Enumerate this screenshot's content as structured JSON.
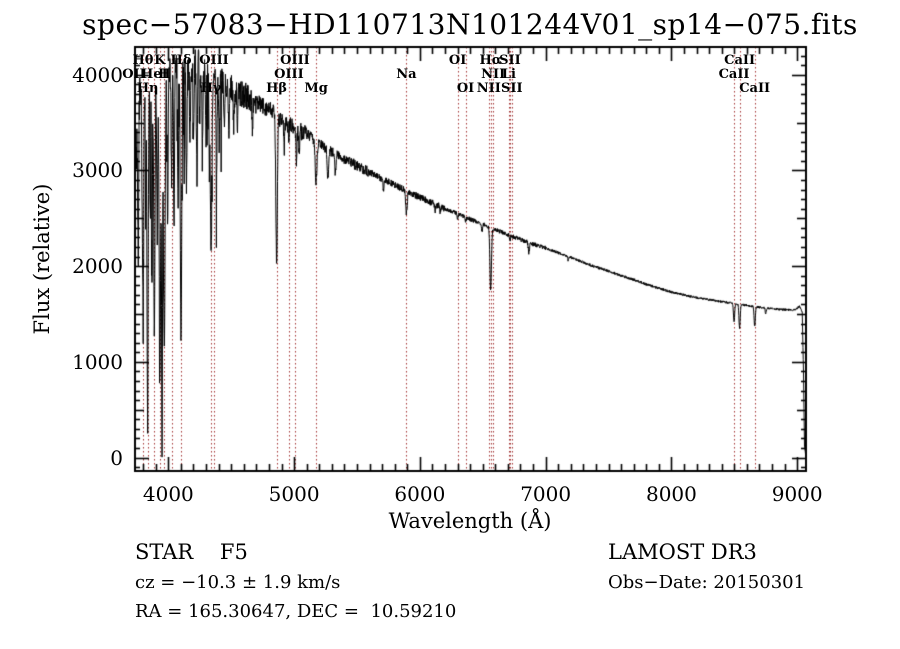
{
  "title": "spec−57083−HD110713N101244V01_sp14−075.fits",
  "colors": {
    "background": "#ffffff",
    "spectrum": "#000000",
    "axis": "#000000",
    "line_marker_red": "#a03030"
  },
  "annotations": {
    "class_line": "STAR    F5",
    "cz_line": "cz = −10.3 ± 1.9 km/s",
    "radec_line": "RA = 165.30647, DEC =  10.59210",
    "survey": "LAMOST DR3",
    "obs_date": "Obs−Date: 20150301"
  },
  "chart_data": {
    "type": "line",
    "title": "spec−57083−HD110713N101244V01_sp14−075.fits",
    "xlabel": "Wavelength (Å)",
    "ylabel": "Flux (relative)",
    "xlim": [
      3735,
      9070
    ],
    "ylim": [
      -140,
      4290
    ],
    "xticks": [
      4000,
      5000,
      6000,
      7000,
      8000,
      9000
    ],
    "yticks": [
      0,
      1000,
      2000,
      3000,
      4000
    ],
    "x_minor_step": 100,
    "y_minor_step": 100,
    "grid": false,
    "legend": null,
    "sample_step": 2,
    "noise_seed": 42,
    "continuum": [
      [
        3742,
        3000
      ],
      [
        3760,
        3750
      ],
      [
        3800,
        4000
      ],
      [
        3900,
        4050
      ],
      [
        4000,
        4100
      ],
      [
        4100,
        4130
      ],
      [
        4200,
        4120
      ],
      [
        4300,
        4030
      ],
      [
        4400,
        3950
      ],
      [
        4500,
        3870
      ],
      [
        4600,
        3790
      ],
      [
        4700,
        3710
      ],
      [
        4800,
        3640
      ],
      [
        4900,
        3520
      ],
      [
        5000,
        3440
      ],
      [
        5100,
        3380
      ],
      [
        5200,
        3280
      ],
      [
        5300,
        3190
      ],
      [
        5400,
        3120
      ],
      [
        5500,
        3050
      ],
      [
        5600,
        2980
      ],
      [
        5700,
        2910
      ],
      [
        5800,
        2850
      ],
      [
        5900,
        2780
      ],
      [
        6000,
        2720
      ],
      [
        6100,
        2660
      ],
      [
        6200,
        2600
      ],
      [
        6300,
        2550
      ],
      [
        6400,
        2490
      ],
      [
        6500,
        2440
      ],
      [
        6600,
        2380
      ],
      [
        6700,
        2330
      ],
      [
        6800,
        2280
      ],
      [
        6900,
        2230
      ],
      [
        7000,
        2190
      ],
      [
        7100,
        2140
      ],
      [
        7200,
        2090
      ],
      [
        7300,
        2040
      ],
      [
        7400,
        1990
      ],
      [
        7500,
        1950
      ],
      [
        7600,
        1900
      ],
      [
        7700,
        1860
      ],
      [
        7800,
        1810
      ],
      [
        7900,
        1770
      ],
      [
        8000,
        1730
      ],
      [
        8100,
        1700
      ],
      [
        8200,
        1670
      ],
      [
        8300,
        1650
      ],
      [
        8400,
        1630
      ],
      [
        8500,
        1610
      ],
      [
        8600,
        1590
      ],
      [
        8700,
        1570
      ],
      [
        8800,
        1555
      ],
      [
        8900,
        1545
      ],
      [
        8980,
        1545
      ],
      [
        9020,
        1580
      ],
      [
        9040,
        1520
      ],
      [
        9050,
        900
      ],
      [
        9058,
        120
      ],
      [
        9068,
        20
      ]
    ],
    "absorption_lines": [
      [
        3727,
        300,
        5
      ],
      [
        3760,
        1500,
        4
      ],
      [
        3798,
        2400,
        6
      ],
      [
        3820,
        1500,
        3
      ],
      [
        3835,
        3650,
        5
      ],
      [
        3856,
        1600,
        3
      ],
      [
        3870,
        2100,
        4
      ],
      [
        3889,
        2750,
        5
      ],
      [
        3912,
        1800,
        4
      ],
      [
        3933,
        3300,
        6
      ],
      [
        3950,
        3900,
        4
      ],
      [
        3968,
        3050,
        6
      ],
      [
        3995,
        1500,
        4
      ],
      [
        4026,
        1300,
        4
      ],
      [
        4045,
        1700,
        4
      ],
      [
        4077,
        1400,
        4
      ],
      [
        4101,
        2850,
        6
      ],
      [
        4126,
        1100,
        3
      ],
      [
        4144,
        1250,
        4
      ],
      [
        4172,
        900,
        4
      ],
      [
        4200,
        800,
        3
      ],
      [
        4227,
        1100,
        4
      ],
      [
        4250,
        700,
        3
      ],
      [
        4271,
        900,
        4
      ],
      [
        4300,
        800,
        3
      ],
      [
        4326,
        900,
        3
      ],
      [
        4340,
        1950,
        6
      ],
      [
        4383,
        1000,
        4
      ],
      [
        4405,
        700,
        4
      ],
      [
        4445,
        500,
        4
      ],
      [
        4481,
        550,
        4
      ],
      [
        4520,
        400,
        4
      ],
      [
        4550,
        350,
        4
      ],
      [
        4668,
        300,
        4
      ],
      [
        4861,
        1500,
        6
      ],
      [
        4921,
        280,
        4
      ],
      [
        4957,
        200,
        3
      ],
      [
        5018,
        320,
        4
      ],
      [
        5041,
        250,
        3
      ],
      [
        5175,
        430,
        7
      ],
      [
        5269,
        330,
        5
      ],
      [
        5328,
        200,
        4
      ],
      [
        5711,
        120,
        4
      ],
      [
        5893,
        230,
        6
      ],
      [
        6122,
        60,
        4
      ],
      [
        6162,
        50,
        4
      ],
      [
        6300,
        60,
        4
      ],
      [
        6363,
        45,
        4
      ],
      [
        6495,
        80,
        4
      ],
      [
        6563,
        650,
        6
      ],
      [
        6717,
        40,
        4
      ],
      [
        6867,
        110,
        5
      ],
      [
        7180,
        40,
        4
      ],
      [
        8498,
        190,
        5
      ],
      [
        8542,
        250,
        5
      ],
      [
        8662,
        210,
        5
      ],
      [
        8750,
        60,
        4
      ]
    ],
    "noise_segments": [
      [
        3742,
        4000,
        230
      ],
      [
        4000,
        4300,
        200
      ],
      [
        4300,
        4700,
        140
      ],
      [
        4700,
        5100,
        90
      ],
      [
        5100,
        5600,
        55
      ],
      [
        5600,
        6200,
        35
      ],
      [
        6200,
        7000,
        22
      ],
      [
        7000,
        8000,
        14
      ],
      [
        8000,
        9040,
        12
      ],
      [
        9040,
        9070,
        5
      ]
    ],
    "marked_lines": [
      {
        "label": "OII",
        "wl": 3727,
        "row": 2
      },
      {
        "label": "Hθ",
        "wl": 3798,
        "row": 1
      },
      {
        "label": "Hη",
        "wl": 3835,
        "row": 3
      },
      {
        "label": "HeI",
        "wl": 3889,
        "row": 2
      },
      {
        "label": "K",
        "wl": 3933,
        "row": 1
      },
      {
        "label": "H",
        "wl": 3968,
        "row": 2
      },
      {
        "label": "",
        "wl": 4026,
        "row": 2
      },
      {
        "label": "Hδ",
        "wl": 4101,
        "row": 1
      },
      {
        "label": "Hγ",
        "wl": 4340,
        "row": 3
      },
      {
        "label": "OIII",
        "wl": 4363,
        "row": 1
      },
      {
        "label": "Hβ",
        "wl": 4861,
        "row": 3
      },
      {
        "label": "OIII",
        "wl": 4959,
        "row": 2
      },
      {
        "label": "OIII",
        "wl": 5007,
        "row": 1
      },
      {
        "label": "Mg",
        "wl": 5175,
        "row": 3
      },
      {
        "label": "Na",
        "wl": 5893,
        "row": 2
      },
      {
        "label": "OI",
        "wl": 6300,
        "row": 1
      },
      {
        "label": "OI",
        "wl": 6363,
        "row": 3
      },
      {
        "label": "NII",
        "wl": 6548,
        "row": 3
      },
      {
        "label": "Hα",
        "wl": 6563,
        "row": 1
      },
      {
        "label": "NII",
        "wl": 6583,
        "row": 2
      },
      {
        "label": "Li",
        "wl": 6708,
        "row": 2
      },
      {
        "label": "SII",
        "wl": 6716,
        "row": 1
      },
      {
        "label": "SII",
        "wl": 6731,
        "row": 3
      },
      {
        "label": "CaII",
        "wl": 8498,
        "row": 2
      },
      {
        "label": "CaII",
        "wl": 8542,
        "row": 1
      },
      {
        "label": "CaII",
        "wl": 8662,
        "row": 3
      }
    ]
  }
}
